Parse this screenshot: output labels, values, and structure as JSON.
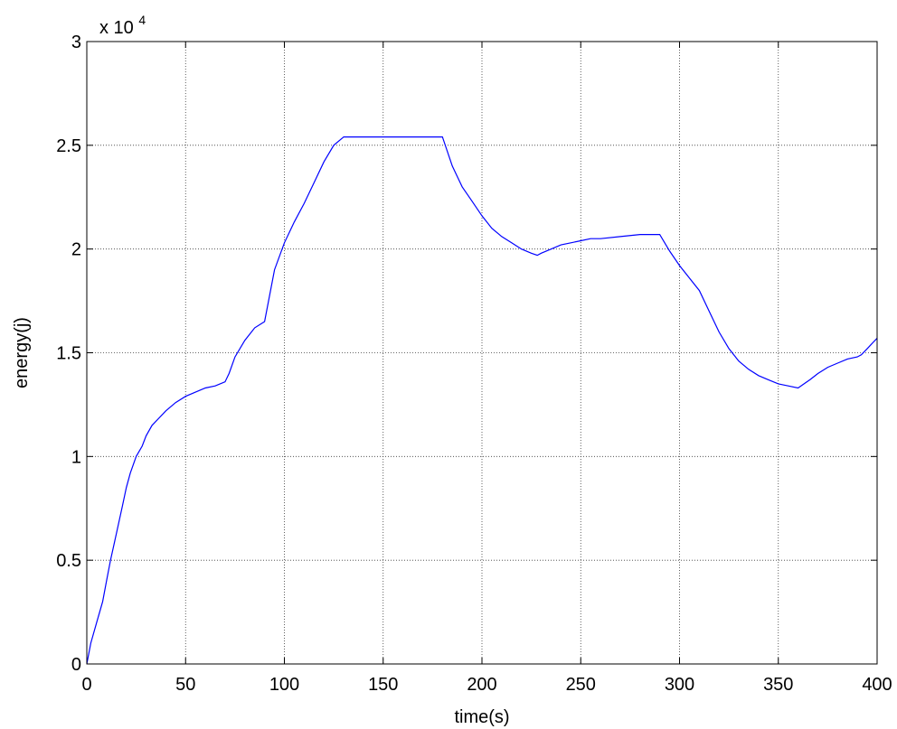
{
  "chart_data": {
    "type": "line",
    "title": "",
    "xlabel": "time(s)",
    "ylabel": "energy(j)",
    "xlim": [
      0,
      400
    ],
    "ylim": [
      0,
      30000
    ],
    "x_ticks": [
      0,
      50,
      100,
      150,
      200,
      250,
      300,
      350,
      400
    ],
    "y_ticks": [
      0,
      5000,
      10000,
      15000,
      20000,
      25000,
      30000
    ],
    "y_tick_labels": [
      "0",
      "0.5",
      "1",
      "1.5",
      "2",
      "2.5",
      "3"
    ],
    "y_exponent_label": "x 10",
    "y_exponent": "4",
    "grid": true,
    "series": [
      {
        "color": "#0000ff",
        "x": [
          0,
          2,
          5,
          8,
          10,
          12,
          15,
          18,
          20,
          22,
          25,
          28,
          30,
          33,
          36,
          40,
          45,
          50,
          55,
          60,
          65,
          70,
          72,
          75,
          80,
          85,
          90,
          93,
          95,
          100,
          105,
          110,
          115,
          120,
          125,
          130,
          140,
          150,
          160,
          170,
          180,
          185,
          190,
          195,
          200,
          205,
          210,
          215,
          220,
          225,
          228,
          230,
          235,
          240,
          245,
          250,
          255,
          260,
          270,
          280,
          290,
          295,
          300,
          305,
          310,
          315,
          320,
          325,
          330,
          335,
          340,
          345,
          350,
          355,
          360,
          363,
          366,
          370,
          375,
          380,
          385,
          390,
          392,
          395,
          398,
          400
        ],
        "y": [
          0,
          1000,
          2000,
          3000,
          4000,
          5000,
          6300,
          7600,
          8500,
          9200,
          10000,
          10500,
          11000,
          11500,
          11800,
          12200,
          12600,
          12900,
          13100,
          13300,
          13400,
          13600,
          14000,
          14800,
          15600,
          16200,
          16500,
          18000,
          19000,
          20300,
          21300,
          22200,
          23200,
          24200,
          25000,
          25400,
          25400,
          25400,
          25400,
          25400,
          25400,
          24000,
          23000,
          22300,
          21600,
          21000,
          20600,
          20300,
          20000,
          19800,
          19700,
          19800,
          20000,
          20200,
          20300,
          20400,
          20500,
          20500,
          20600,
          20700,
          20700,
          19900,
          19200,
          18600,
          18000,
          17000,
          16000,
          15200,
          14600,
          14200,
          13900,
          13700,
          13500,
          13400,
          13300,
          13500,
          13700,
          14000,
          14300,
          14500,
          14700,
          14800,
          14900,
          15200,
          15500,
          15700
        ]
      }
    ]
  }
}
